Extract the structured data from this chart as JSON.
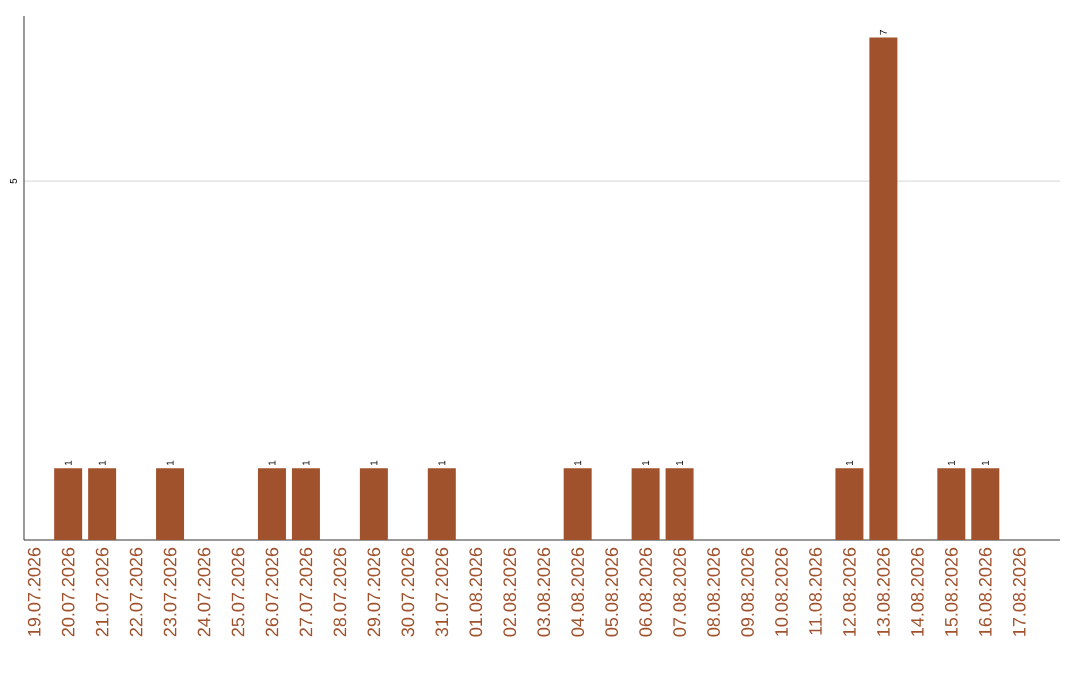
{
  "chart_data": {
    "type": "bar",
    "categories": [
      "19.07.2026",
      "20.07.2026",
      "21.07.2026",
      "22.07.2026",
      "23.07.2026",
      "24.07.2026",
      "25.07.2026",
      "26.07.2026",
      "27.07.2026",
      "28.07.2026",
      "29.07.2026",
      "30.07.2026",
      "31.07.2026",
      "01.08.2026",
      "02.08.2026",
      "03.08.2026",
      "04.08.2026",
      "05.08.2026",
      "06.08.2026",
      "07.08.2026",
      "08.08.2026",
      "09.08.2026",
      "10.08.2026",
      "11.08.2026",
      "12.08.2026",
      "13.08.2026",
      "14.08.2026",
      "15.08.2026",
      "16.08.2026",
      "17.08.2026"
    ],
    "values": [
      0,
      1,
      1,
      0,
      1,
      0,
      0,
      1,
      1,
      0,
      1,
      0,
      1,
      0,
      0,
      0,
      1,
      0,
      1,
      1,
      0,
      0,
      0,
      0,
      1,
      7,
      0,
      1,
      1,
      0
    ],
    "value_labels": [
      null,
      "1",
      "1",
      null,
      "1",
      null,
      null,
      "1",
      "1",
      null,
      "1",
      null,
      "1",
      null,
      null,
      null,
      "1",
      null,
      "1",
      "1",
      null,
      null,
      null,
      null,
      "1",
      "7",
      null,
      "1",
      "1",
      null
    ],
    "color": "#a0522d",
    "ylim": [
      0,
      7.3
    ],
    "yticks": [
      5
    ],
    "grid": "y"
  }
}
